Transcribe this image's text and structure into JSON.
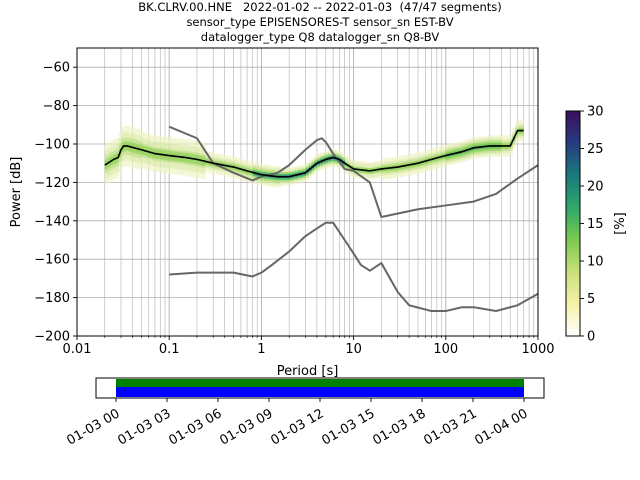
{
  "header": {
    "title": "BK.CLRV.00.HNE   2022-01-02 -- 2022-01-03  (47/47 segments)",
    "line2": "sensor_type EPISENSORES-T sensor_sn EST-BV",
    "line3": "datalogger_type Q8 datalogger_sn Q8-BV"
  },
  "colorbar": {
    "label": "[%]",
    "ticks": [
      "0",
      "5",
      "10",
      "15",
      "20",
      "25",
      "30"
    ],
    "range": [
      0,
      30
    ],
    "colors": [
      "#ffffff",
      "#f4f1a8",
      "#c9e07a",
      "#7cc94f",
      "#2fa86a",
      "#1a7b7c",
      "#283b82",
      "#3a0f5e"
    ]
  },
  "timeline": {
    "ticks": [
      "01-03 00",
      "01-03 03",
      "01-03 06",
      "01-03 09",
      "01-03 12",
      "01-03 15",
      "01-03 18",
      "01-03 21",
      "01-04 00"
    ],
    "coverage_color": "#0000ff",
    "gaps_ok_color": "#008000"
  },
  "chart_data": {
    "type": "line",
    "xlabel": "Period [s]",
    "ylabel": "Power [dB]",
    "xscale": "log",
    "xlim": [
      0.01,
      1000
    ],
    "ylim": [
      -200,
      -50
    ],
    "xticks": [
      0.01,
      0.1,
      1,
      10,
      100,
      1000
    ],
    "xtick_labels": [
      "0.01",
      "0.1",
      "1",
      "10",
      "100",
      "1000"
    ],
    "yticks": [
      -200,
      -180,
      -160,
      -140,
      -120,
      -100,
      -80,
      -60
    ],
    "ytick_labels": [
      "−200",
      "−180",
      "−160",
      "−140",
      "−120",
      "−100",
      "−80",
      "−60"
    ],
    "grid": true,
    "mode": {
      "name": "mode",
      "color": "#000000",
      "x": [
        0.02,
        0.025,
        0.028,
        0.03,
        0.032,
        0.035,
        0.05,
        0.07,
        0.1,
        0.15,
        0.2,
        0.3,
        0.5,
        0.7,
        1,
        1.5,
        2,
        3,
        4,
        5,
        6,
        7,
        8,
        10,
        15,
        20,
        30,
        50,
        70,
        100,
        150,
        200,
        300,
        400,
        500,
        600,
        700
      ],
      "y": [
        -111,
        -108,
        -107,
        -103,
        -101,
        -101,
        -103,
        -105,
        -106,
        -107,
        -108,
        -110,
        -112,
        -114,
        -116,
        -117,
        -117,
        -115,
        -110,
        -108,
        -107,
        -108,
        -110,
        -113,
        -114,
        -113,
        -112,
        -110,
        -108,
        -106,
        -104,
        -102,
        -101,
        -101,
        -101,
        -93,
        -93
      ]
    },
    "reference_models": [
      {
        "color": "#666666",
        "x": [
          0.1,
          0.2,
          0.3,
          0.5,
          0.8,
          1,
          1.5,
          2,
          3,
          4,
          4.5,
          5,
          6,
          8,
          10,
          15,
          20,
          50,
          100,
          200,
          350,
          600,
          1000
        ],
        "y": [
          -91,
          -97,
          -110,
          -115,
          -119,
          -117,
          -115,
          -111,
          -103,
          -98,
          -97,
          -99,
          -105,
          -113,
          -114,
          -120,
          -138,
          -134,
          -132,
          -130,
          -126,
          -118,
          -111
        ]
      },
      {
        "color": "#666666",
        "x": [
          0.1,
          0.2,
          0.3,
          0.5,
          0.8,
          1,
          1.3,
          2,
          3,
          4,
          5,
          6,
          8,
          10,
          12,
          15,
          20,
          30,
          40,
          70,
          100,
          150,
          200,
          350,
          600,
          1000
        ],
        "y": [
          -168,
          -167,
          -167,
          -167,
          -169,
          -167,
          -163,
          -156,
          -148,
          -144,
          -141,
          -141,
          -150,
          -157,
          -163,
          -166,
          -162,
          -177,
          -184,
          -187,
          -187,
          -185,
          -185,
          -187,
          -184,
          -178
        ]
      }
    ]
  }
}
